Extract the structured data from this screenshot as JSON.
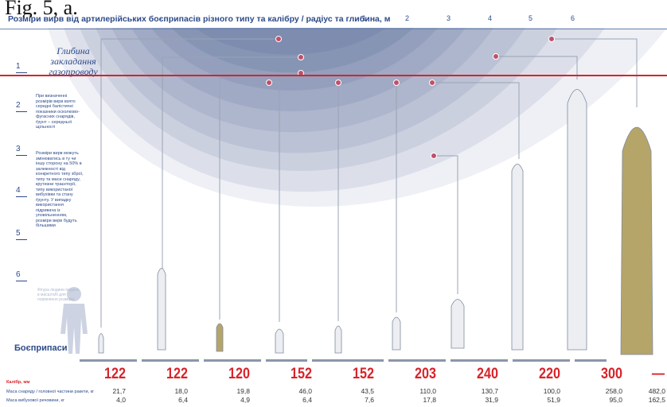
{
  "caption": "Fig. 5, a.",
  "title": "Розміри вирв від артилерійських боєприпасів різного типу та калібру / радіус та глибина, м",
  "top_scale": [
    "1",
    "2",
    "3",
    "4",
    "5",
    "6"
  ],
  "left_scale": [
    "1",
    "2",
    "3",
    "4",
    "5",
    "6"
  ],
  "pipeline_label": "Глибина закладання газопроводу",
  "note1": "При визначенні розмірів вирв взято середні балістичні показники осколково-фугасних снарядів, ґрунт – середньої щільності",
  "note2": "Розміри вирв можуть змінюватись в ту чи іншу сторону на 50% в залежності від конкретного типу зброї, типу та маси снаряду, крутизни траєкторії, типу використаної вибухівки та стану ґрунту. У випадку використання підривача із уповільненням, розміри вирв будуть більшими",
  "human_note": "Фігура людини подана в масштабі для порівняння розмірів",
  "ammo_heading": "Боєприпаси",
  "row_labels": {
    "caliber": "Калібр, мм",
    "mass": "Маса снаряду / головної частини ракети, кг",
    "explosive": "Маса вибухової речовини, кг"
  },
  "munitions": [
    {
      "caliber": "122",
      "mass": "21,7",
      "explosive": "4,0"
    },
    {
      "caliber": "122",
      "mass": "18,0",
      "explosive": "6,4"
    },
    {
      "caliber": "120",
      "mass": "19,8",
      "explosive": "4,9"
    },
    {
      "caliber": "152",
      "mass": "46,0",
      "explosive": "6,4"
    },
    {
      "caliber": "152",
      "mass": "43,5",
      "explosive": "7,6"
    },
    {
      "caliber": "203",
      "mass": "110,0",
      "explosive": "17,8"
    },
    {
      "caliber": "240",
      "mass": "130,7",
      "explosive": "31,9"
    },
    {
      "caliber": "220",
      "mass": "100,0",
      "explosive": "51,9"
    },
    {
      "caliber": "300",
      "mass": "258,0",
      "explosive": "95,0"
    },
    {
      "caliber": "—",
      "mass": "482,0",
      "explosive": "162,5"
    }
  ],
  "colors": {
    "accent_red": "#d8232a",
    "navy": "#2d4a8a",
    "crater": "#5b6f9c",
    "missile_olive": "#b5a569"
  }
}
